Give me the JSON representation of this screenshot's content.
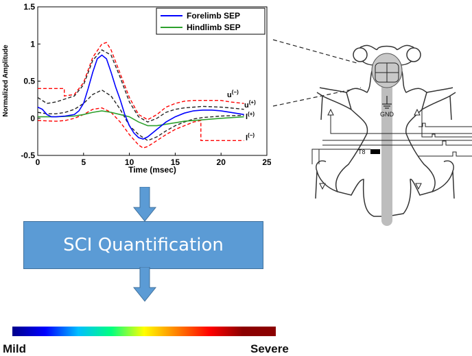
{
  "chart_data": {
    "type": "line",
    "title": "",
    "xlabel": "Time (msec)",
    "ylabel": "Normalized Amplitude",
    "xlim": [
      0,
      25
    ],
    "ylim": [
      -0.5,
      1.5
    ],
    "xticks": [
      0,
      5,
      10,
      15,
      20,
      25
    ],
    "yticks": [
      -0.5,
      0,
      0.5,
      1,
      1.5
    ],
    "yticklabels": [
      "-0.5",
      "0",
      "0.5",
      "1",
      "1.5"
    ],
    "grid": false,
    "legend_position": "top-right",
    "series": [
      {
        "name": "Forelimb SEP",
        "color": "#0000ff",
        "dash": "solid",
        "in_legend": true,
        "points": [
          [
            0,
            0.15
          ],
          [
            0.5,
            0.12
          ],
          [
            1,
            0.05
          ],
          [
            1.5,
            0.02
          ],
          [
            2,
            0.02
          ],
          [
            3,
            0.03
          ],
          [
            4,
            0.05
          ],
          [
            4.5,
            0.1
          ],
          [
            5,
            0.2
          ],
          [
            5.5,
            0.4
          ],
          [
            6,
            0.62
          ],
          [
            6.5,
            0.8
          ],
          [
            7,
            0.85
          ],
          [
            7.5,
            0.8
          ],
          [
            8,
            0.62
          ],
          [
            8.5,
            0.42
          ],
          [
            9,
            0.25
          ],
          [
            9.5,
            0.05
          ],
          [
            10,
            -0.1
          ],
          [
            10.5,
            -0.2
          ],
          [
            11,
            -0.26
          ],
          [
            11.5,
            -0.28
          ],
          [
            12,
            -0.25
          ],
          [
            13,
            -0.15
          ],
          [
            14,
            -0.05
          ],
          [
            15,
            0.02
          ],
          [
            16,
            0.07
          ],
          [
            17,
            0.1
          ],
          [
            18,
            0.11
          ],
          [
            19,
            0.11
          ],
          [
            20,
            0.1
          ],
          [
            21,
            0.08
          ],
          [
            22,
            0.06
          ],
          [
            22.5,
            0.05
          ]
        ]
      },
      {
        "name": "Hindlimb SEP",
        "color": "#2ca02c",
        "dash": "solid",
        "in_legend": true,
        "points": [
          [
            0,
            0.02
          ],
          [
            2,
            0.02
          ],
          [
            4,
            0.03
          ],
          [
            5,
            0.05
          ],
          [
            6,
            0.08
          ],
          [
            7,
            0.1
          ],
          [
            8,
            0.08
          ],
          [
            9,
            0.05
          ],
          [
            10,
            0.02
          ],
          [
            11,
            -0.05
          ],
          [
            12,
            -0.1
          ],
          [
            13,
            -0.1
          ],
          [
            14,
            -0.08
          ],
          [
            15,
            -0.06
          ],
          [
            16,
            -0.04
          ],
          [
            18,
            -0.02
          ],
          [
            20,
            0
          ],
          [
            22.5,
            0.02
          ]
        ]
      },
      {
        "name": "u(-)",
        "color": "#ff0000",
        "dash": "dashed",
        "in_legend": false,
        "points": [
          [
            0,
            0.4
          ],
          [
            2.9,
            0.4
          ],
          [
            2.9,
            0.3
          ],
          [
            4,
            0.32
          ],
          [
            5,
            0.48
          ],
          [
            6,
            0.82
          ],
          [
            7,
            1.0
          ],
          [
            7.5,
            1.02
          ],
          [
            8,
            0.92
          ],
          [
            9,
            0.6
          ],
          [
            10,
            0.28
          ],
          [
            11,
            0.05
          ],
          [
            12,
            -0.02
          ],
          [
            13,
            0.05
          ],
          [
            14,
            0.15
          ],
          [
            15,
            0.2
          ],
          [
            16,
            0.23
          ],
          [
            17,
            0.24
          ],
          [
            18,
            0.24
          ],
          [
            20,
            0.24
          ],
          [
            21,
            0.22
          ],
          [
            22.5,
            0.2
          ]
        ]
      },
      {
        "name": "u(+)",
        "color": "#222222",
        "dash": "dashed",
        "in_legend": false,
        "points": [
          [
            0,
            0.28
          ],
          [
            1,
            0.2
          ],
          [
            2,
            0.22
          ],
          [
            3,
            0.26
          ],
          [
            4,
            0.3
          ],
          [
            5,
            0.45
          ],
          [
            6,
            0.78
          ],
          [
            7,
            0.92
          ],
          [
            8,
            0.85
          ],
          [
            9,
            0.55
          ],
          [
            10,
            0.22
          ],
          [
            11,
            0.02
          ],
          [
            12,
            -0.05
          ],
          [
            13,
            0
          ],
          [
            14,
            0.08
          ],
          [
            15,
            0.12
          ],
          [
            16,
            0.14
          ],
          [
            17,
            0.15
          ],
          [
            18,
            0.16
          ],
          [
            20,
            0.15
          ],
          [
            21,
            0.14
          ],
          [
            22.5,
            0.12
          ]
        ]
      },
      {
        "name": "l(+)",
        "color": "#222222",
        "dash": "dashed",
        "in_legend": false,
        "points": [
          [
            0,
            0.08
          ],
          [
            1,
            0.06
          ],
          [
            2,
            0.06
          ],
          [
            3,
            0.08
          ],
          [
            4,
            0.12
          ],
          [
            5,
            0.2
          ],
          [
            6,
            0.32
          ],
          [
            7,
            0.38
          ],
          [
            8,
            0.3
          ],
          [
            9,
            0.12
          ],
          [
            10,
            -0.1
          ],
          [
            11,
            -0.22
          ],
          [
            12,
            -0.3
          ],
          [
            13,
            -0.25
          ],
          [
            14,
            -0.17
          ],
          [
            15,
            -0.1
          ],
          [
            16,
            -0.05
          ],
          [
            17,
            -0.01
          ],
          [
            18,
            0.01
          ],
          [
            20,
            0.03
          ],
          [
            22.5,
            0.04
          ]
        ]
      },
      {
        "name": "l(-)",
        "color": "#ff0000",
        "dash": "dashed",
        "in_legend": false,
        "points": [
          [
            0,
            -0.03
          ],
          [
            2,
            -0.04
          ],
          [
            3,
            -0.03
          ],
          [
            4,
            0
          ],
          [
            5,
            0.05
          ],
          [
            6,
            0.12
          ],
          [
            7,
            0.14
          ],
          [
            8,
            0.08
          ],
          [
            9,
            -0.05
          ],
          [
            10,
            -0.22
          ],
          [
            11,
            -0.36
          ],
          [
            11.5,
            -0.4
          ],
          [
            12,
            -0.38
          ],
          [
            13,
            -0.3
          ],
          [
            14,
            -0.22
          ],
          [
            15,
            -0.15
          ],
          [
            16,
            -0.1
          ],
          [
            17,
            -0.05
          ],
          [
            17.8,
            -0.03
          ],
          [
            17.8,
            -0.3
          ],
          [
            22.5,
            -0.3
          ]
        ]
      }
    ]
  },
  "legend": [
    {
      "label": "Forelimb SEP",
      "color": "#0000ff"
    },
    {
      "label": "Hindlimb SEP",
      "color": "#2ca02c"
    }
  ],
  "annotations": {
    "u_minus": {
      "base": "u",
      "sup": "(−)"
    },
    "u_plus": {
      "base": "u",
      "sup": "(+)"
    },
    "l_plus": {
      "base": "l",
      "sup": "(+)"
    },
    "l_minus": {
      "base": "l",
      "sup": "(−)"
    }
  },
  "diagram": {
    "gnd_label": "GND",
    "t8_label": "T8"
  },
  "process_box": {
    "label": "SCI Quantification",
    "color": "#5b9bd5"
  },
  "severity_scale": {
    "min_label": "Mild",
    "max_label": "Severe",
    "colors": [
      "#00008b",
      "#0000ff",
      "#00bfff",
      "#00ff80",
      "#ffff00",
      "#ff8000",
      "#ff0000",
      "#8b0000",
      "#8b0000"
    ]
  }
}
